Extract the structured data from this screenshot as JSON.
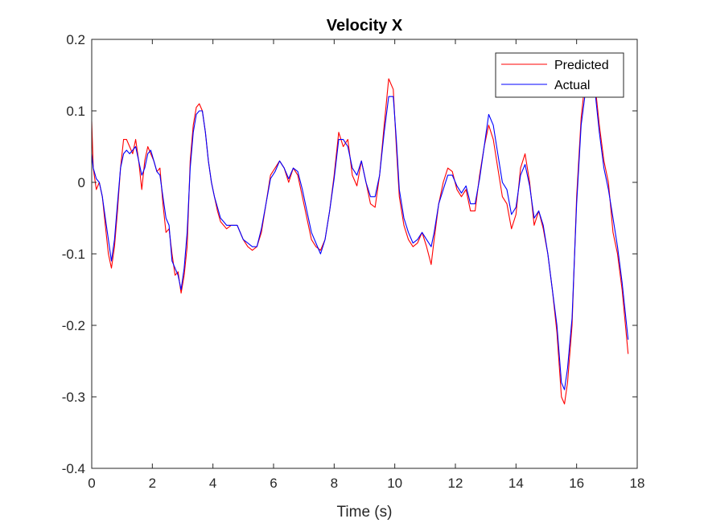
{
  "chart_data": {
    "type": "line",
    "title": "Velocity X",
    "xlabel": "Time (s)",
    "ylabel": "",
    "xlim": [
      0,
      18
    ],
    "ylim": [
      -0.4,
      0.2
    ],
    "xticks": [
      0,
      2,
      4,
      6,
      8,
      10,
      12,
      14,
      16,
      18
    ],
    "yticks": [
      -0.4,
      -0.3,
      -0.2,
      -0.1,
      0,
      0.1,
      0.2
    ],
    "ytick_labels": [
      "-0.4",
      "-0.3",
      "-0.2",
      "-0.1",
      "0",
      "0.1",
      "0.2"
    ],
    "grid": false,
    "legend_position": "top-right",
    "series": [
      {
        "name": "Predicted",
        "color": "#ff0000",
        "x": [
          0,
          0.05,
          0.15,
          0.25,
          0.35,
          0.45,
          0.55,
          0.65,
          0.75,
          0.85,
          0.95,
          1.05,
          1.15,
          1.25,
          1.35,
          1.45,
          1.55,
          1.65,
          1.75,
          1.85,
          1.95,
          2.05,
          2.15,
          2.25,
          2.35,
          2.45,
          2.55,
          2.65,
          2.75,
          2.85,
          2.95,
          3.05,
          3.15,
          3.25,
          3.35,
          3.45,
          3.55,
          3.65,
          3.75,
          3.85,
          3.95,
          4.05,
          4.15,
          4.25,
          4.35,
          4.45,
          4.6,
          4.8,
          5.0,
          5.15,
          5.3,
          5.45,
          5.6,
          5.75,
          5.9,
          6.05,
          6.2,
          6.35,
          6.5,
          6.65,
          6.8,
          6.95,
          7.1,
          7.25,
          7.4,
          7.55,
          7.7,
          7.85,
          8.0,
          8.15,
          8.3,
          8.45,
          8.6,
          8.75,
          8.9,
          9.05,
          9.2,
          9.35,
          9.5,
          9.65,
          9.8,
          9.95,
          10.05,
          10.15,
          10.3,
          10.45,
          10.6,
          10.75,
          10.9,
          11.05,
          11.2,
          11.3,
          11.45,
          11.6,
          11.75,
          11.9,
          12.05,
          12.2,
          12.35,
          12.5,
          12.65,
          12.8,
          12.95,
          13.1,
          13.25,
          13.4,
          13.55,
          13.7,
          13.85,
          14.0,
          14.15,
          14.3,
          14.45,
          14.6,
          14.75,
          14.9,
          15.05,
          15.2,
          15.35,
          15.5,
          15.6,
          15.7,
          15.85,
          16.0,
          16.15,
          16.3,
          16.45,
          16.6,
          16.75,
          16.9,
          17.05,
          17.2,
          17.35,
          17.5,
          17.7
        ],
        "y": [
          0.085,
          0.02,
          -0.01,
          0.0,
          -0.02,
          -0.06,
          -0.1,
          -0.12,
          -0.09,
          -0.04,
          0.02,
          0.06,
          0.06,
          0.05,
          0.04,
          0.06,
          0.03,
          -0.01,
          0.03,
          0.05,
          0.04,
          0.03,
          0.015,
          0.02,
          -0.03,
          -0.07,
          -0.065,
          -0.1,
          -0.13,
          -0.125,
          -0.155,
          -0.13,
          -0.09,
          0.03,
          0.08,
          0.105,
          0.11,
          0.1,
          0.07,
          0.03,
          0.0,
          -0.02,
          -0.04,
          -0.055,
          -0.06,
          -0.065,
          -0.06,
          -0.06,
          -0.08,
          -0.09,
          -0.095,
          -0.09,
          -0.07,
          -0.03,
          0.01,
          0.02,
          0.03,
          0.02,
          0.0,
          0.02,
          0.01,
          -0.02,
          -0.05,
          -0.08,
          -0.09,
          -0.095,
          -0.08,
          -0.04,
          0.01,
          0.07,
          0.05,
          0.06,
          0.01,
          -0.005,
          0.03,
          0.0,
          -0.03,
          -0.035,
          0.01,
          0.08,
          0.145,
          0.13,
          0.05,
          -0.02,
          -0.06,
          -0.08,
          -0.09,
          -0.085,
          -0.07,
          -0.09,
          -0.115,
          -0.08,
          -0.03,
          0.0,
          0.02,
          0.015,
          -0.01,
          -0.02,
          -0.01,
          -0.04,
          -0.04,
          0.01,
          0.05,
          0.08,
          0.06,
          0.02,
          -0.02,
          -0.03,
          -0.065,
          -0.045,
          0.02,
          0.04,
          0.0,
          -0.06,
          -0.04,
          -0.065,
          -0.1,
          -0.15,
          -0.21,
          -0.3,
          -0.31,
          -0.28,
          -0.2,
          -0.02,
          0.09,
          0.15,
          0.16,
          0.14,
          0.08,
          0.03,
          0.0,
          -0.07,
          -0.1,
          -0.15,
          -0.24
        ]
      },
      {
        "name": "Actual",
        "color": "#0000ff",
        "x": [
          0,
          0.05,
          0.15,
          0.25,
          0.35,
          0.45,
          0.55,
          0.65,
          0.75,
          0.85,
          0.95,
          1.05,
          1.15,
          1.25,
          1.35,
          1.45,
          1.55,
          1.65,
          1.75,
          1.85,
          1.95,
          2.05,
          2.15,
          2.25,
          2.35,
          2.45,
          2.55,
          2.65,
          2.75,
          2.85,
          2.95,
          3.05,
          3.15,
          3.25,
          3.35,
          3.45,
          3.55,
          3.65,
          3.75,
          3.85,
          3.95,
          4.05,
          4.15,
          4.25,
          4.35,
          4.45,
          4.6,
          4.8,
          5.0,
          5.15,
          5.3,
          5.45,
          5.6,
          5.75,
          5.9,
          6.05,
          6.2,
          6.35,
          6.5,
          6.65,
          6.8,
          6.95,
          7.1,
          7.25,
          7.4,
          7.55,
          7.7,
          7.85,
          8.0,
          8.15,
          8.3,
          8.45,
          8.6,
          8.75,
          8.9,
          9.05,
          9.2,
          9.35,
          9.5,
          9.65,
          9.8,
          9.95,
          10.05,
          10.15,
          10.3,
          10.45,
          10.6,
          10.75,
          10.9,
          11.05,
          11.2,
          11.3,
          11.45,
          11.6,
          11.75,
          11.9,
          12.05,
          12.2,
          12.35,
          12.5,
          12.65,
          12.8,
          12.95,
          13.1,
          13.25,
          13.4,
          13.55,
          13.7,
          13.85,
          14.0,
          14.15,
          14.3,
          14.45,
          14.6,
          14.75,
          14.9,
          15.05,
          15.2,
          15.35,
          15.5,
          15.6,
          15.7,
          15.85,
          16.0,
          16.15,
          16.3,
          16.45,
          16.6,
          16.75,
          16.9,
          17.05,
          17.2,
          17.35,
          17.5,
          17.7
        ],
        "y": [
          0.04,
          0.02,
          0.005,
          0.0,
          -0.02,
          -0.05,
          -0.08,
          -0.11,
          -0.08,
          -0.03,
          0.02,
          0.04,
          0.045,
          0.04,
          0.045,
          0.05,
          0.03,
          0.01,
          0.02,
          0.04,
          0.045,
          0.03,
          0.015,
          0.01,
          -0.02,
          -0.05,
          -0.06,
          -0.11,
          -0.12,
          -0.13,
          -0.15,
          -0.12,
          -0.07,
          0.02,
          0.07,
          0.095,
          0.1,
          0.1,
          0.07,
          0.03,
          0.0,
          -0.02,
          -0.035,
          -0.05,
          -0.055,
          -0.06,
          -0.06,
          -0.06,
          -0.08,
          -0.085,
          -0.09,
          -0.09,
          -0.065,
          -0.03,
          0.005,
          0.015,
          0.03,
          0.02,
          0.005,
          0.02,
          0.015,
          -0.01,
          -0.04,
          -0.07,
          -0.085,
          -0.1,
          -0.08,
          -0.04,
          0.005,
          0.06,
          0.06,
          0.05,
          0.02,
          0.01,
          0.03,
          0.0,
          -0.02,
          -0.02,
          0.01,
          0.07,
          0.12,
          0.12,
          0.06,
          -0.01,
          -0.05,
          -0.07,
          -0.085,
          -0.08,
          -0.07,
          -0.08,
          -0.09,
          -0.07,
          -0.03,
          -0.01,
          0.01,
          0.01,
          -0.005,
          -0.015,
          -0.005,
          -0.03,
          -0.03,
          0.005,
          0.05,
          0.095,
          0.08,
          0.04,
          0.0,
          -0.01,
          -0.045,
          -0.035,
          0.01,
          0.025,
          -0.005,
          -0.05,
          -0.04,
          -0.06,
          -0.1,
          -0.15,
          -0.2,
          -0.28,
          -0.29,
          -0.26,
          -0.19,
          -0.03,
          0.08,
          0.13,
          0.15,
          0.13,
          0.07,
          0.02,
          -0.01,
          -0.05,
          -0.09,
          -0.14,
          -0.22
        ]
      }
    ]
  }
}
